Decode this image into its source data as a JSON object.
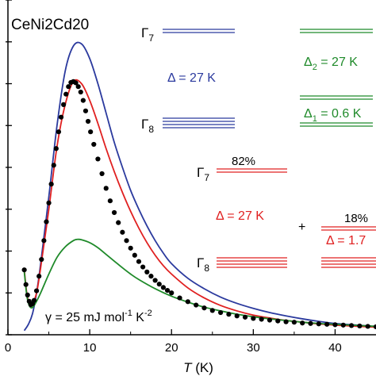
{
  "chart_data": {
    "type": "line",
    "title": "CeNi2Cd20",
    "xlabel_italic": "T",
    "xlabel_unit": "(K)",
    "ylabel": "",
    "xlim": [
      0,
      45
    ],
    "xticks": [
      0,
      10,
      20,
      30,
      40
    ],
    "ylim": [
      0,
      8
    ],
    "yticks": [
      0,
      1,
      2,
      3,
      4,
      5,
      6,
      7,
      8
    ],
    "series": [
      {
        "color": "#2b3a9e",
        "curve": "blue",
        "x": [
          2,
          2.5,
          3,
          3.5,
          4,
          5,
          6,
          7,
          8,
          9,
          10,
          11,
          12,
          13,
          14,
          15,
          16,
          17,
          18,
          19,
          20,
          22,
          24,
          26,
          28,
          30,
          32,
          34,
          36,
          38,
          40,
          42,
          44,
          45
        ],
        "y": [
          0.1,
          0.25,
          0.5,
          1.0,
          1.7,
          3.3,
          5.0,
          6.3,
          6.9,
          6.95,
          6.6,
          6.0,
          5.3,
          4.6,
          4.0,
          3.45,
          3.0,
          2.6,
          2.25,
          1.95,
          1.7,
          1.35,
          1.1,
          0.9,
          0.75,
          0.63,
          0.53,
          0.45,
          0.38,
          0.32,
          0.27,
          0.24,
          0.21,
          0.2
        ]
      },
      {
        "color": "#e02020",
        "curve": "red",
        "x": [
          2,
          2.3,
          2.6,
          3,
          3.5,
          4,
          5,
          6,
          7,
          8,
          9,
          10,
          11,
          12,
          13,
          14,
          15,
          16,
          17,
          18,
          19,
          20,
          22,
          24,
          26,
          28,
          30,
          32,
          34,
          36,
          38,
          40,
          42,
          44,
          45
        ],
        "y": [
          1.55,
          1.0,
          0.75,
          0.75,
          1.0,
          1.6,
          3.0,
          4.5,
          5.5,
          6.05,
          6.0,
          5.6,
          5.05,
          4.45,
          3.9,
          3.4,
          2.95,
          2.55,
          2.2,
          1.9,
          1.65,
          1.45,
          1.12,
          0.88,
          0.7,
          0.57,
          0.47,
          0.4,
          0.34,
          0.3,
          0.26,
          0.23,
          0.21,
          0.19,
          0.18
        ]
      },
      {
        "color": "#1f8a2a",
        "curve": "green",
        "x": [
          2,
          2.3,
          2.6,
          3,
          3.5,
          4,
          5,
          6,
          7,
          8,
          8.5,
          9,
          10,
          11,
          12,
          13,
          14,
          15,
          16,
          18,
          20,
          22,
          24,
          26,
          28,
          30,
          32,
          34,
          36,
          38,
          40,
          42,
          44,
          45
        ],
        "y": [
          1.5,
          0.95,
          0.7,
          0.65,
          0.8,
          1.0,
          1.45,
          1.85,
          2.1,
          2.25,
          2.28,
          2.27,
          2.2,
          2.08,
          1.92,
          1.76,
          1.6,
          1.45,
          1.32,
          1.1,
          0.92,
          0.78,
          0.66,
          0.57,
          0.49,
          0.43,
          0.38,
          0.34,
          0.3,
          0.27,
          0.25,
          0.23,
          0.21,
          0.2
        ]
      },
      {
        "color": "#000000",
        "curve": "data-points",
        "x": [
          2.0,
          2.2,
          2.4,
          2.6,
          2.8,
          3.0,
          3.2,
          3.5,
          3.8,
          4.1,
          4.4,
          4.7,
          5.0,
          5.3,
          5.6,
          5.9,
          6.2,
          6.5,
          6.8,
          7.1,
          7.4,
          7.7,
          8.0,
          8.3,
          8.6,
          8.9,
          9.2,
          9.5,
          9.8,
          10.1,
          10.5,
          11.0,
          11.5,
          12.0,
          12.5,
          13.0,
          13.5,
          14.0,
          14.5,
          15.0,
          15.5,
          16.0,
          16.5,
          17.0,
          17.5,
          18.0,
          18.5,
          19.0,
          19.5,
          20.0,
          21.0,
          22.0,
          23.0,
          24.0,
          25.0,
          26.0,
          27.0,
          28.0,
          29.0,
          30.0,
          31.0,
          32.0,
          33.0,
          34.0,
          35.0,
          36.0,
          37.0,
          38.0,
          39.0,
          40.0,
          41.0,
          42.0,
          43.0,
          44.0,
          45.0
        ],
        "y": [
          1.55,
          1.2,
          0.95,
          0.8,
          0.72,
          0.74,
          0.82,
          1.05,
          1.4,
          1.8,
          2.25,
          2.7,
          3.15,
          3.6,
          4.05,
          4.45,
          4.85,
          5.2,
          5.5,
          5.75,
          5.93,
          6.03,
          6.05,
          6.02,
          5.93,
          5.8,
          5.6,
          5.35,
          5.1,
          4.85,
          4.55,
          4.2,
          3.85,
          3.5,
          3.2,
          2.92,
          2.68,
          2.45,
          2.25,
          2.07,
          1.9,
          1.75,
          1.62,
          1.5,
          1.4,
          1.3,
          1.21,
          1.13,
          1.06,
          1.0,
          0.88,
          0.79,
          0.71,
          0.64,
          0.58,
          0.53,
          0.49,
          0.45,
          0.42,
          0.39,
          0.37,
          0.35,
          0.33,
          0.31,
          0.3,
          0.28,
          0.27,
          0.26,
          0.25,
          0.24,
          0.23,
          0.22,
          0.21,
          0.2,
          0.19
        ]
      }
    ]
  },
  "annotations": {
    "blue": {
      "color": "#2b3a9e",
      "gamma7_main": "Γ",
      "gamma7_sub": "7",
      "gamma8_main": "Γ",
      "gamma8_sub": "8",
      "delta_text": "Δ = 27 K"
    },
    "green": {
      "color": "#1f8a2a",
      "delta2_main": "Δ",
      "delta2_sub": "2",
      "delta2_rest": " = 27 K",
      "delta1_main": "Δ",
      "delta1_sub": "1",
      "delta1_rest": " = 0.6 K"
    },
    "red": {
      "color": "#e02020",
      "gamma7_main": "Γ",
      "gamma7_sub": "7",
      "gamma8_main": "Γ",
      "gamma8_sub": "8",
      "pct_82": "82%",
      "delta_text": "Δ = 27 K",
      "plus": "+",
      "pct_18": "18%",
      "delta2_text": "Δ = 1.7"
    },
    "gamma": {
      "main": "γ = 25 mJ mol",
      "sup1": "-1",
      "mid": " K",
      "sup2": "-2"
    }
  }
}
